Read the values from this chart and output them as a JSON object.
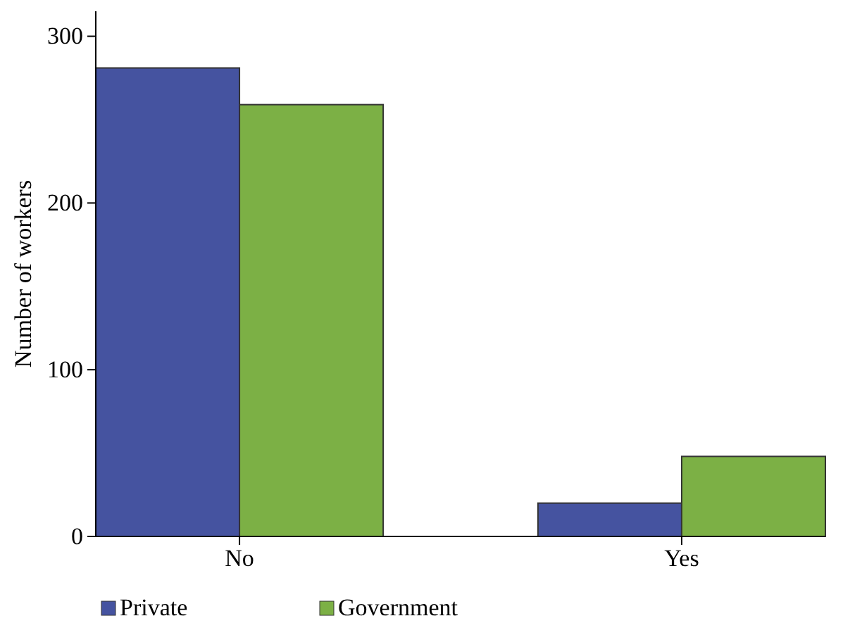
{
  "chart_data": {
    "type": "bar",
    "ylabel": "Number of workers",
    "categories": [
      "No",
      "Yes"
    ],
    "series": [
      {
        "name": "Private",
        "color": "#4553a0",
        "values": [
          281,
          20
        ]
      },
      {
        "name": "Government",
        "color": "#7cb045",
        "values": [
          259,
          48
        ]
      }
    ],
    "ylim": [
      0,
      315
    ],
    "yticks": [
      0,
      100,
      200,
      300
    ],
    "grid": false,
    "legend": "bottom left"
  }
}
